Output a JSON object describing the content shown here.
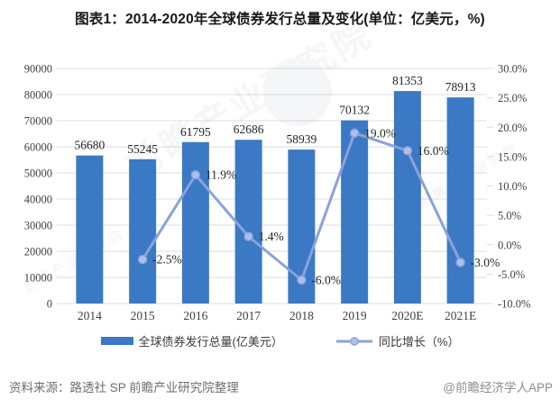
{
  "title": "图表1：2014-2020年全球债券发行总量及变化(单位：亿美元，%)",
  "watermark": {
    "text": "前瞻产业研究院"
  },
  "footer": {
    "source": "资料来源：路透社 SP 前瞻产业研究院整理",
    "brand": "@前瞻经济学人APP"
  },
  "colors": {
    "bar": "#3B79C4",
    "line": "#8AA2DB",
    "marker_fill": "#AEC0E8",
    "grid": "#DCDDE0",
    "axis_text": "#3F3F3F",
    "label_text": "#262626",
    "watermark": "#9AA2AF"
  },
  "chart_data": {
    "type": "bar+line combo",
    "title": "图表1：2014-2020年全球债券发行总量及变化(单位：亿美元，%)",
    "categories": [
      "2014",
      "2015",
      "2016",
      "2017",
      "2018",
      "2019",
      "2020E",
      "2021E"
    ],
    "series": [
      {
        "name": "全球债券发行总量(亿美元）",
        "type": "bar",
        "axis": "left",
        "values": [
          56680,
          55245,
          61795,
          62686,
          58939,
          70132,
          81353,
          78913
        ],
        "value_labels": [
          "56680",
          "55245",
          "61795",
          "62686",
          "58939",
          "70132",
          "81353",
          "78913"
        ]
      },
      {
        "name": "同比增长（%）",
        "type": "line",
        "axis": "right",
        "values": [
          null,
          -2.5,
          11.9,
          1.4,
          -6.0,
          19.0,
          16.0,
          -3.0
        ],
        "point_labels": [
          "",
          "-2.5%",
          "11.9%",
          "1.4%",
          "-6.0%",
          "19.0%",
          "16.0%",
          "-3.0%"
        ]
      }
    ],
    "left_axis": {
      "min": 0,
      "max": 90000,
      "step": 10000,
      "tick_labels": [
        "0",
        "10000",
        "20000",
        "30000",
        "40000",
        "50000",
        "60000",
        "70000",
        "80000",
        "90000"
      ]
    },
    "right_axis": {
      "min": -10,
      "max": 30,
      "step": 5,
      "tick_labels": [
        "-10.0%",
        "-5.0%",
        "0.0%",
        "5.0%",
        "10.0%",
        "15.0%",
        "20.0%",
        "25.0%",
        "30.0%"
      ]
    },
    "grid": true,
    "legend_position": "bottom"
  }
}
